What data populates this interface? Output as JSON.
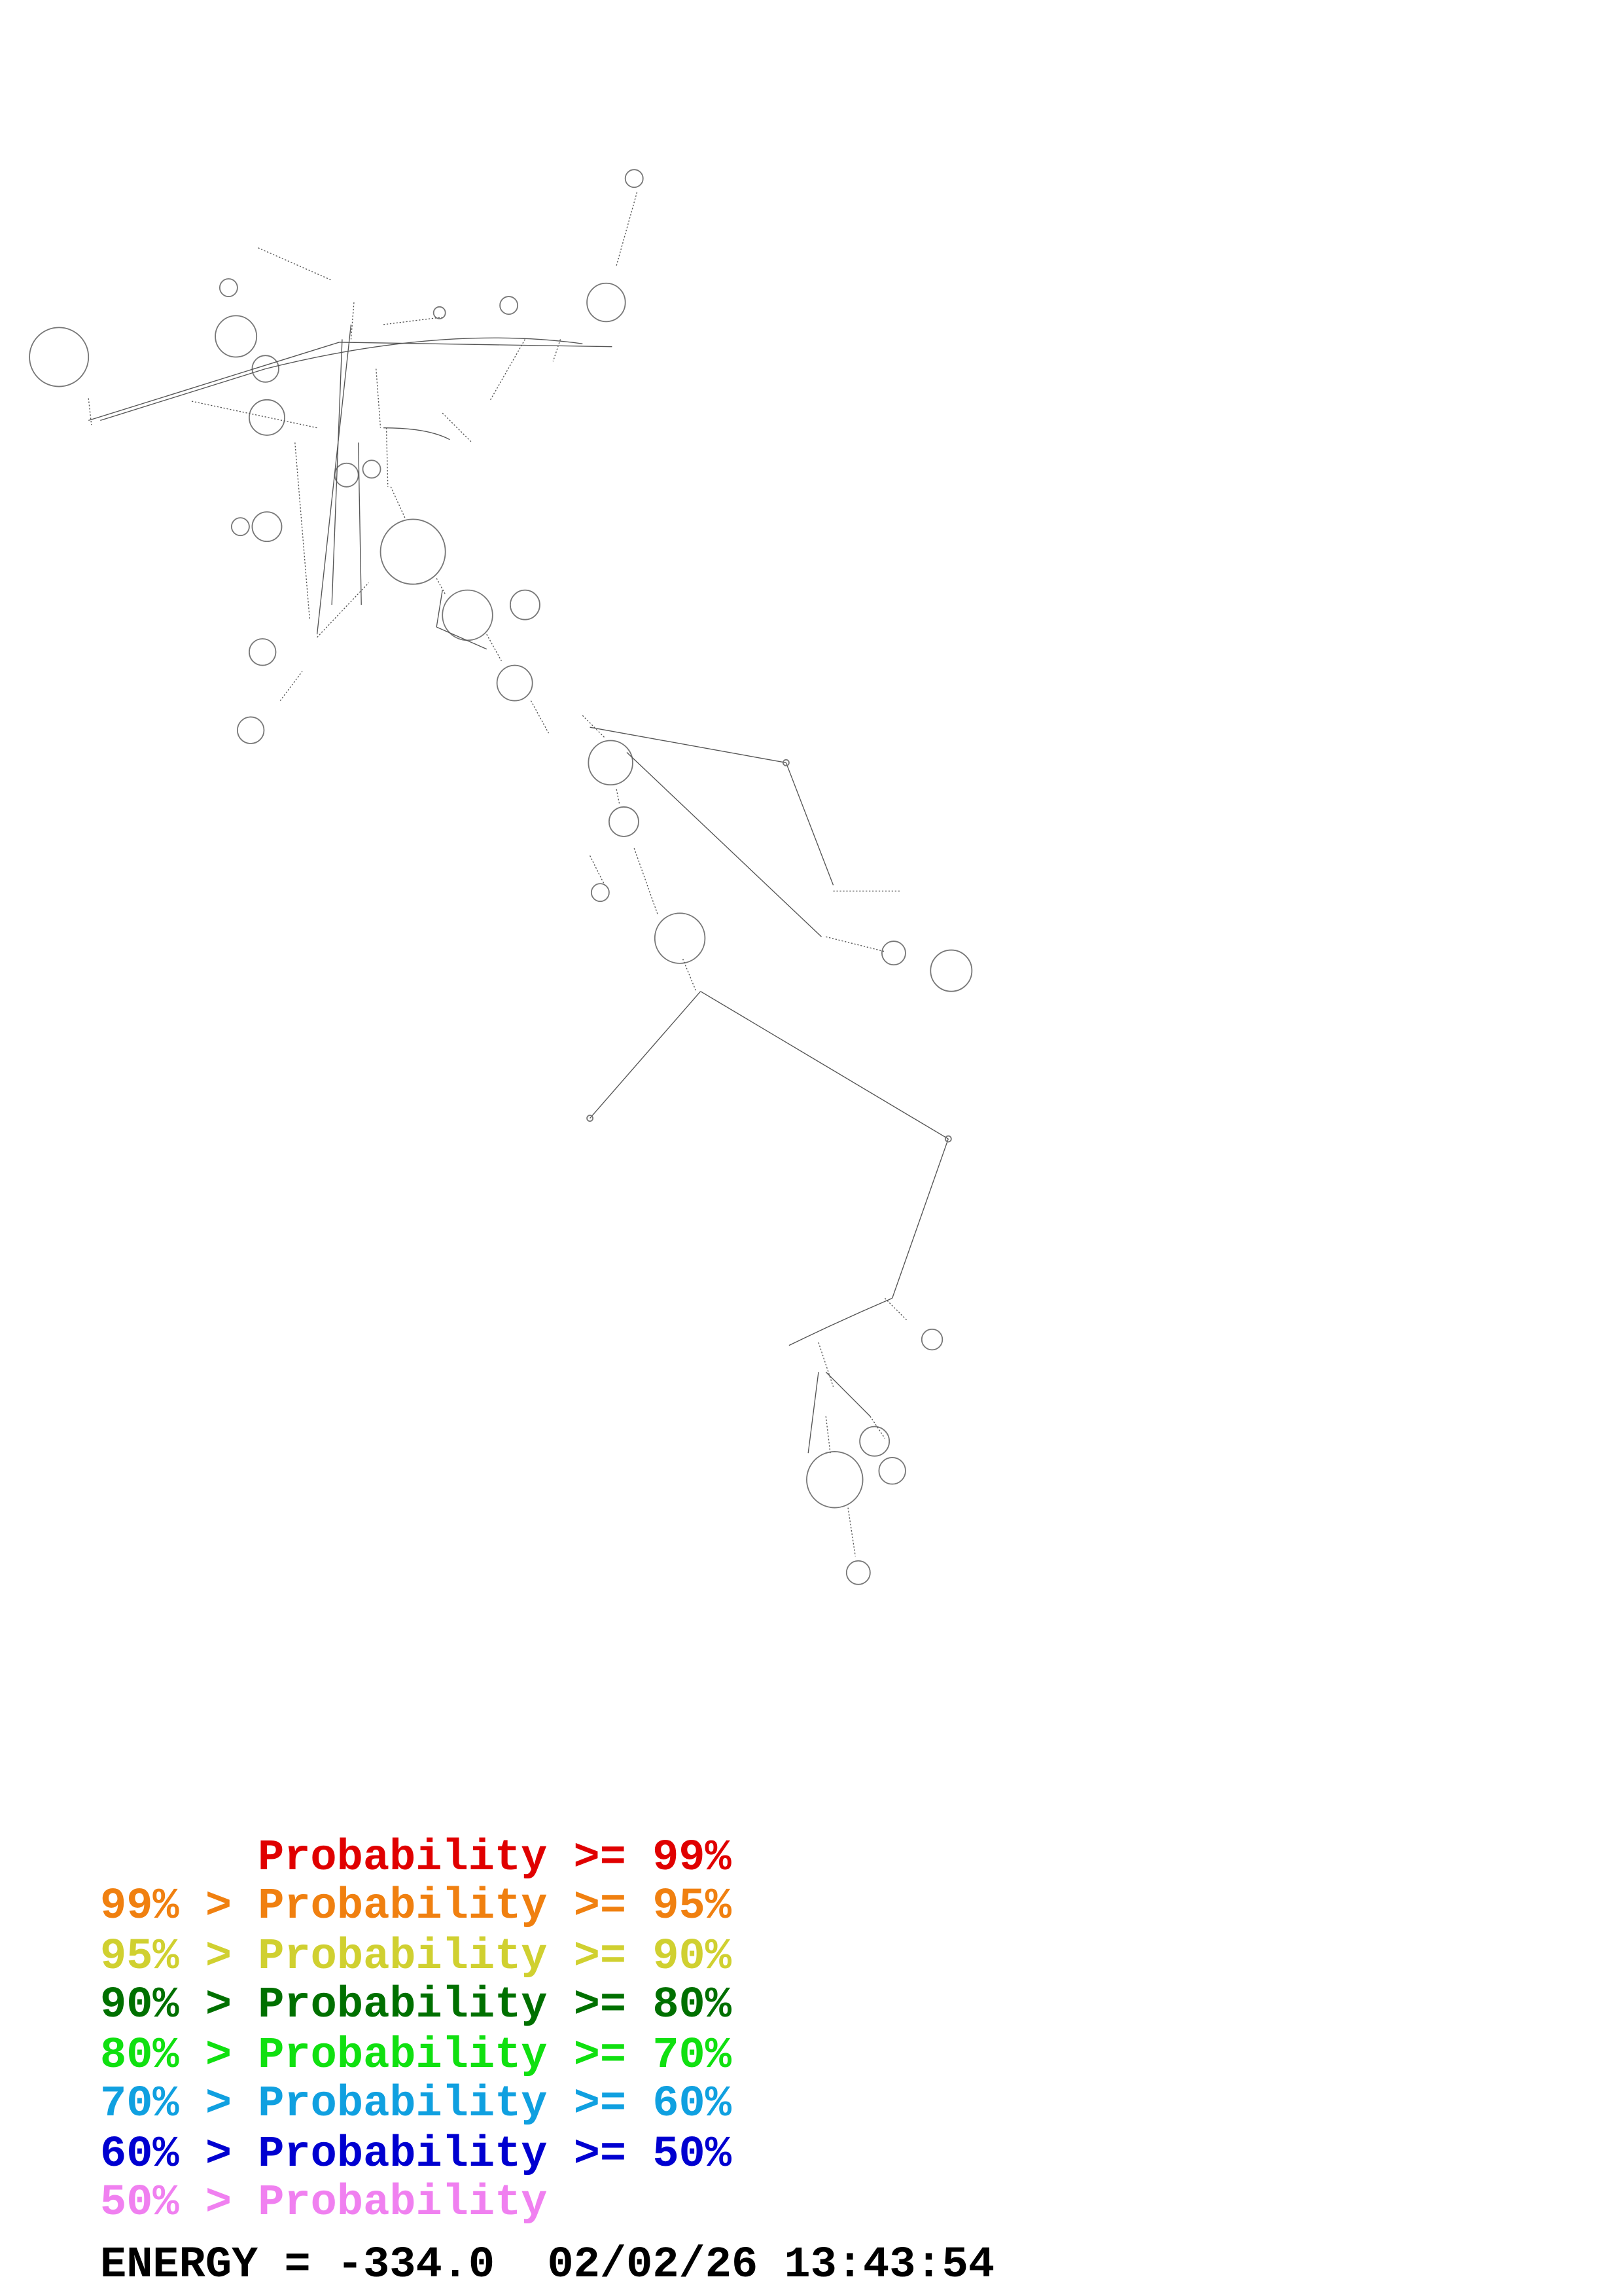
{
  "legend": [
    {
      "text": "Probability >= 99%",
      "color": "#e00000"
    },
    {
      "text": "99% > Probability >= 95%",
      "color": "#f08010"
    },
    {
      "text": "95% > Probability >= 90%",
      "color": "#d0d030"
    },
    {
      "text": "90% > Probability >= 80%",
      "color": "#007000"
    },
    {
      "text": "80% > Probability >= 70%",
      "color": "#10e010"
    },
    {
      "text": "70% > Probability >= 60%",
      "color": "#10a0e0"
    },
    {
      "text": "60% > Probability >= 50%",
      "color": "#0000d0"
    },
    {
      "text": "50% > Probability",
      "color": "#f080f0"
    }
  ],
  "energy": "ENERGY = -334.0  02/02/26 13:43:54"
}
